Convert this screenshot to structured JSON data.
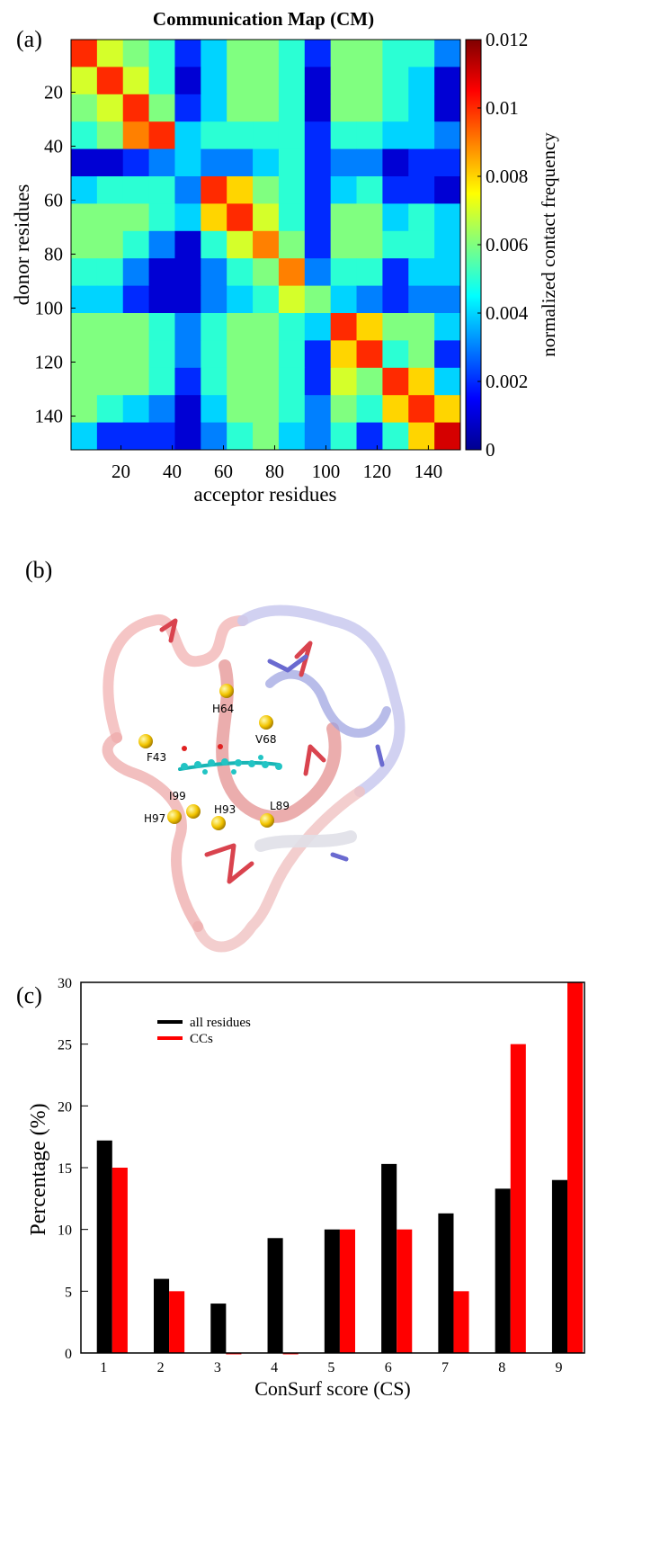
{
  "chart_data": [
    {
      "type": "heatmap",
      "panel_label": "(a)",
      "title": "Communication Map (CM)",
      "x_label": "acceptor residues",
      "y_label": "donor residues",
      "xlim": [
        0.5,
        152.5
      ],
      "ylim": [
        152.5,
        0.5
      ],
      "xticks": [
        20,
        40,
        60,
        80,
        100,
        120,
        140
      ],
      "yticks": [
        20,
        40,
        60,
        80,
        100,
        120,
        140
      ],
      "colormap": "jet",
      "colorbar_label": "normalized contact frequency",
      "clim": [
        0,
        0.012
      ],
      "cticks": [
        0,
        0.002,
        0.004,
        0.006,
        0.008,
        0.01,
        0.012
      ],
      "matrix": [
        [
          0.01,
          0.007,
          0.006,
          0.005,
          0.002,
          0.004,
          0.006,
          0.006,
          0.005,
          0.002,
          0.006,
          0.006,
          0.005,
          0.005,
          0.003
        ],
        [
          0.007,
          0.01,
          0.007,
          0.005,
          0.001,
          0.004,
          0.006,
          0.006,
          0.005,
          0.001,
          0.006,
          0.006,
          0.005,
          0.004,
          0.001
        ],
        [
          0.006,
          0.007,
          0.01,
          0.006,
          0.002,
          0.004,
          0.006,
          0.006,
          0.005,
          0.001,
          0.006,
          0.006,
          0.005,
          0.004,
          0.001
        ],
        [
          0.005,
          0.006,
          0.009,
          0.01,
          0.004,
          0.005,
          0.005,
          0.005,
          0.005,
          0.002,
          0.005,
          0.005,
          0.004,
          0.004,
          0.003
        ],
        [
          0.001,
          0.001,
          0.002,
          0.003,
          0.004,
          0.003,
          0.003,
          0.004,
          0.005,
          0.002,
          0.003,
          0.003,
          0.001,
          0.002,
          0.002
        ],
        [
          0.004,
          0.005,
          0.005,
          0.005,
          0.003,
          0.01,
          0.008,
          0.006,
          0.005,
          0.002,
          0.004,
          0.005,
          0.002,
          0.002,
          0.001
        ],
        [
          0.006,
          0.006,
          0.006,
          0.005,
          0.004,
          0.008,
          0.01,
          0.007,
          0.005,
          0.002,
          0.006,
          0.006,
          0.004,
          0.005,
          0.004
        ],
        [
          0.006,
          0.006,
          0.005,
          0.003,
          0.001,
          0.005,
          0.007,
          0.009,
          0.006,
          0.002,
          0.006,
          0.006,
          0.005,
          0.005,
          0.004
        ],
        [
          0.005,
          0.005,
          0.003,
          0.001,
          0.001,
          0.003,
          0.005,
          0.006,
          0.009,
          0.003,
          0.005,
          0.005,
          0.002,
          0.004,
          0.004
        ],
        [
          0.004,
          0.004,
          0.002,
          0.001,
          0.001,
          0.003,
          0.004,
          0.005,
          0.007,
          0.006,
          0.004,
          0.003,
          0.002,
          0.003,
          0.003
        ],
        [
          0.006,
          0.006,
          0.006,
          0.005,
          0.003,
          0.005,
          0.006,
          0.006,
          0.005,
          0.004,
          0.01,
          0.008,
          0.006,
          0.006,
          0.004
        ],
        [
          0.006,
          0.006,
          0.006,
          0.005,
          0.003,
          0.005,
          0.006,
          0.006,
          0.005,
          0.002,
          0.008,
          0.01,
          0.005,
          0.006,
          0.002
        ],
        [
          0.006,
          0.006,
          0.006,
          0.005,
          0.002,
          0.005,
          0.006,
          0.006,
          0.005,
          0.002,
          0.007,
          0.006,
          0.01,
          0.008,
          0.004
        ],
        [
          0.006,
          0.005,
          0.004,
          0.003,
          0.001,
          0.004,
          0.006,
          0.006,
          0.005,
          0.003,
          0.006,
          0.005,
          0.008,
          0.01,
          0.008
        ],
        [
          0.004,
          0.002,
          0.002,
          0.002,
          0.001,
          0.003,
          0.005,
          0.006,
          0.004,
          0.003,
          0.005,
          0.002,
          0.005,
          0.008,
          0.011
        ]
      ]
    },
    {
      "type": "bar",
      "panel_label": "(c)",
      "x_label": "ConSurf score (CS)",
      "y_label": "Percentage (%)",
      "x": [
        1,
        2,
        3,
        4,
        5,
        6,
        7,
        8,
        9
      ],
      "xlim": [
        0.6,
        9.45
      ],
      "xticks": [
        1,
        2,
        3,
        4,
        5,
        6,
        7,
        8,
        9
      ],
      "ylim": [
        0,
        30
      ],
      "yticks": [
        0,
        5,
        10,
        15,
        20,
        25,
        30
      ],
      "legend": "upper left",
      "series": [
        {
          "name": "all residues",
          "color": "#000000",
          "values": [
            17.2,
            6.0,
            4.0,
            9.3,
            10.0,
            15.3,
            11.3,
            13.3,
            14.0
          ]
        },
        {
          "name": "CCs",
          "color": "#ff0000",
          "values": [
            15,
            5,
            0,
            0,
            10,
            10,
            5,
            25,
            30
          ]
        }
      ]
    }
  ],
  "structure_panel": {
    "label": "(b)",
    "residues": [
      "H64",
      "V68",
      "F43",
      "I99",
      "H97",
      "H93",
      "L89"
    ]
  }
}
